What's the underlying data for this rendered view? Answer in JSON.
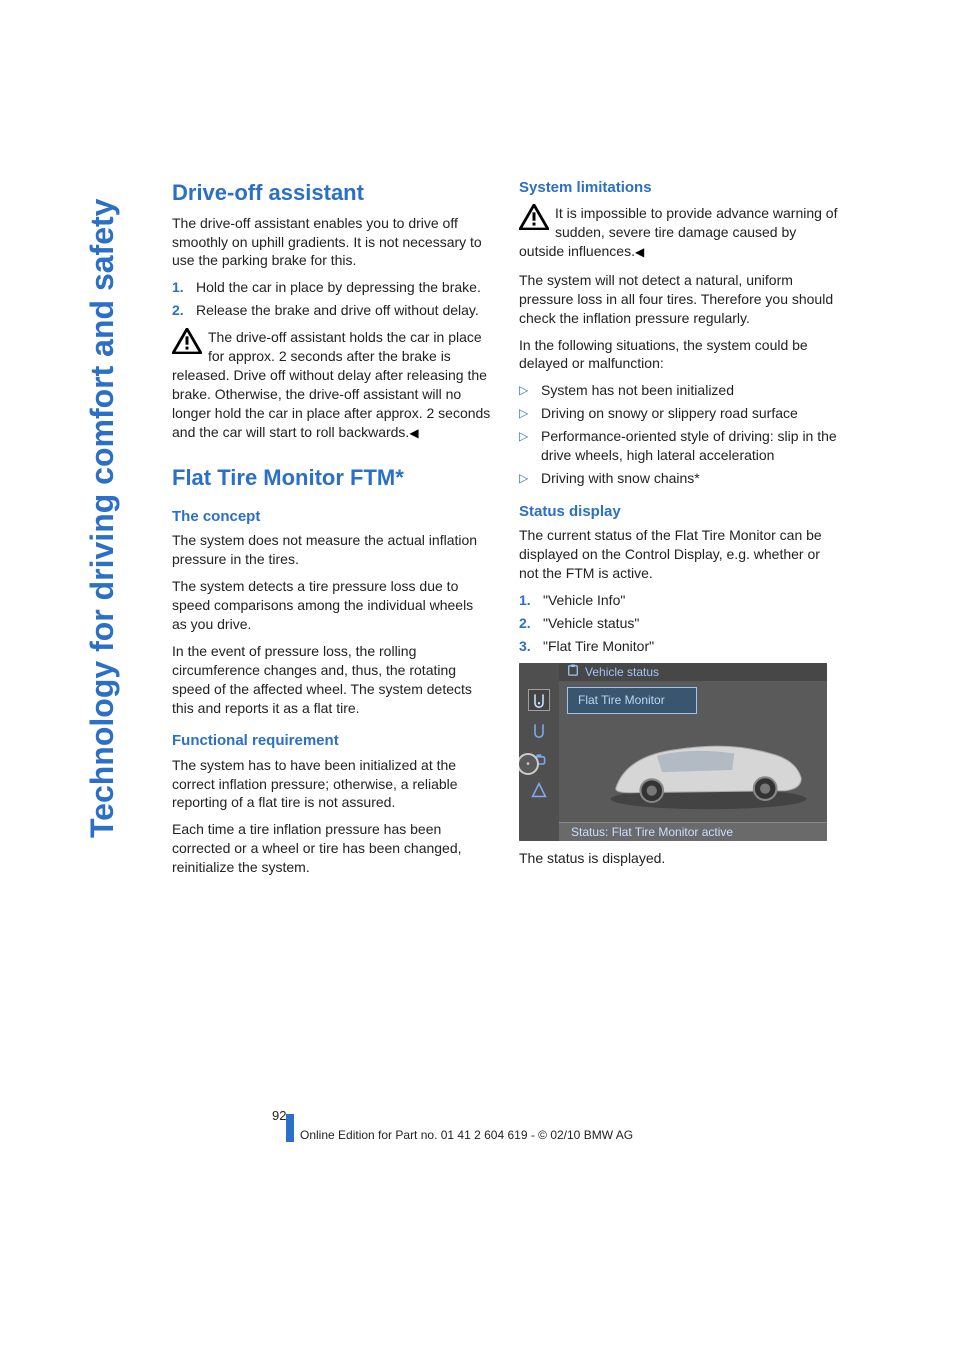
{
  "colors": {
    "brand": "#2b6fc7",
    "text": "#222222",
    "figure_bg": "#5a5a5a",
    "figure_side": "#4f4f4f",
    "figure_title_bg": "#474747",
    "figure_tab_bg": "#3a556e",
    "figure_accent": "#9fc4f5",
    "figure_status_bg": "#6a6a6a"
  },
  "sidebar_label": "Technology for driving comfort and safety",
  "left": {
    "sec1_title": "Drive-off assistant",
    "sec1_p1": "The drive-off assistant enables you to drive off smoothly on uphill gradients. It is not necessary to use the parking brake for this.",
    "sec1_list": [
      "Hold the car in place by depressing the brake.",
      "Release the brake and drive off without delay."
    ],
    "sec1_warn": "The drive-off assistant holds the car in place for approx. 2 seconds after the brake is released. Drive off without delay after releasing the brake. Otherwise, the drive-off assistant will no longer hold the car in place after approx. 2 seconds and the car will start to roll backwards.",
    "sec2_title": "Flat Tire Monitor FTM*",
    "sec2_h1": "The concept",
    "sec2_p1": "The system does not measure the actual inflation pressure in the tires.",
    "sec2_p2": "The system detects a tire pressure loss due to speed comparisons among the individual wheels as you drive.",
    "sec2_p3": "In the event of pressure loss, the rolling circumference changes and, thus, the rotating speed of the affected wheel. The system detects this and reports it as a flat tire.",
    "sec2_h2": "Functional requirement",
    "sec2_p4": "The system has to have been initialized at the correct inflation pressure; otherwise, a reliable reporting of a flat tire is not assured.",
    "sec2_p5": "Each time a tire inflation pressure has been corrected or a wheel or tire has been changed, reinitialize the system."
  },
  "right": {
    "h1": "System limitations",
    "warn": "It is impossible to provide advance warning of sudden, severe tire damage caused by outside influences.",
    "p1": "The system will not detect a natural, uniform pressure loss in all four tires. Therefore you should check the inflation pressure regularly.",
    "p2": "In the following situations, the system could be delayed or malfunction:",
    "bullets": [
      "System has not been initialized",
      "Driving on snowy or slippery road surface",
      "Performance-oriented style of driving: slip in the drive wheels, high lateral acceleration",
      "Driving with snow chains*"
    ],
    "h2": "Status display",
    "p3": "The current status of the Flat Tire Monitor can be displayed on the Control Display, e.g. whether or not the FTM is active.",
    "steps": [
      "\"Vehicle Info\"",
      "\"Vehicle status\"",
      "\"Flat Tire Monitor\""
    ],
    "fig_title": "Vehicle status",
    "fig_tab": "Flat Tire Monitor",
    "fig_status": "Status: Flat Tire Monitor active",
    "p4": "The status is displayed."
  },
  "footer": {
    "page_num": "92",
    "line": "Online Edition for Part no. 01 41 2 604 619 - © 02/10 BMW AG"
  }
}
